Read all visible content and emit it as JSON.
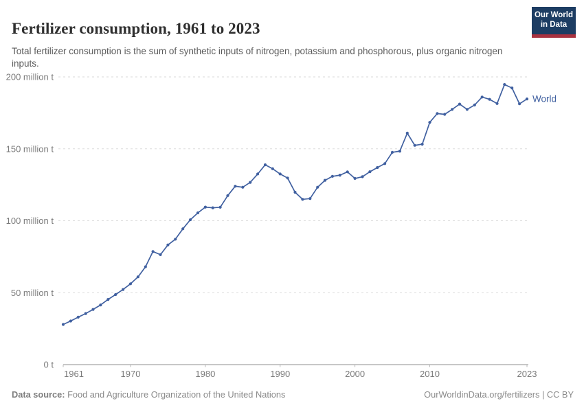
{
  "header": {
    "title": "Fertilizer consumption, 1961 to 2023",
    "subtitle": "Total fertilizer consumption is the sum of synthetic inputs of nitrogen, potassium and phosphorous, plus organic nitrogen inputs.",
    "logo": {
      "line1": "Our World",
      "line2": "in Data",
      "bg_color": "#1d3d63",
      "bar_color": "#a93240"
    }
  },
  "chart_data": {
    "type": "line",
    "title": "Fertilizer consumption, 1961 to 2023",
    "unit": "million t",
    "xlim": [
      1961,
      2023
    ],
    "ylim": [
      0,
      200
    ],
    "grid": "horizontal dashed",
    "legend": "end-of-line label",
    "line_color": "#4060a0",
    "x_ticks": [
      1961,
      1970,
      1980,
      1990,
      2000,
      2010,
      2023
    ],
    "y_ticks": [
      {
        "value": 0,
        "label": "0 t"
      },
      {
        "value": 50,
        "label": "50 million t"
      },
      {
        "value": 100,
        "label": "100 million t"
      },
      {
        "value": 150,
        "label": "150 million t"
      },
      {
        "value": 200,
        "label": "200 million t"
      }
    ],
    "series": [
      {
        "name": "World",
        "x": [
          1961,
          1962,
          1963,
          1964,
          1965,
          1966,
          1967,
          1968,
          1969,
          1970,
          1971,
          1972,
          1973,
          1974,
          1975,
          1976,
          1977,
          1978,
          1979,
          1980,
          1981,
          1982,
          1983,
          1984,
          1985,
          1986,
          1987,
          1988,
          1989,
          1990,
          1991,
          1992,
          1993,
          1994,
          1995,
          1996,
          1997,
          1998,
          1999,
          2000,
          2001,
          2002,
          2003,
          2004,
          2005,
          2006,
          2007,
          2008,
          2009,
          2010,
          2011,
          2012,
          2013,
          2014,
          2015,
          2016,
          2017,
          2018,
          2019,
          2020,
          2021,
          2022,
          2023
        ],
        "y": [
          27.9,
          30.3,
          33.0,
          35.5,
          38.4,
          41.5,
          45.3,
          48.7,
          52.2,
          56.2,
          61.0,
          68.0,
          78.6,
          76.4,
          83.2,
          87.2,
          94.4,
          100.7,
          105.5,
          109.5,
          109.0,
          109.4,
          117.5,
          124.0,
          123.3,
          126.7,
          132.5,
          138.9,
          136.2,
          132.5,
          129.7,
          119.8,
          114.9,
          115.4,
          123.3,
          128.1,
          130.9,
          131.7,
          134.0,
          129.4,
          130.6,
          134.1,
          137.0,
          139.7,
          147.6,
          148.4,
          160.9,
          152.4,
          153.2,
          168.4,
          174.5,
          174.0,
          177.4,
          181.1,
          177.4,
          180.5,
          186.0,
          184.4,
          181.5,
          194.7,
          192.3,
          181.3,
          184.7
        ]
      }
    ]
  },
  "footer": {
    "source_label": "Data source:",
    "source_text": " Food and Agriculture Organization of the United Nations",
    "credit": "OurWorldinData.org/fertilizers | CC BY"
  }
}
